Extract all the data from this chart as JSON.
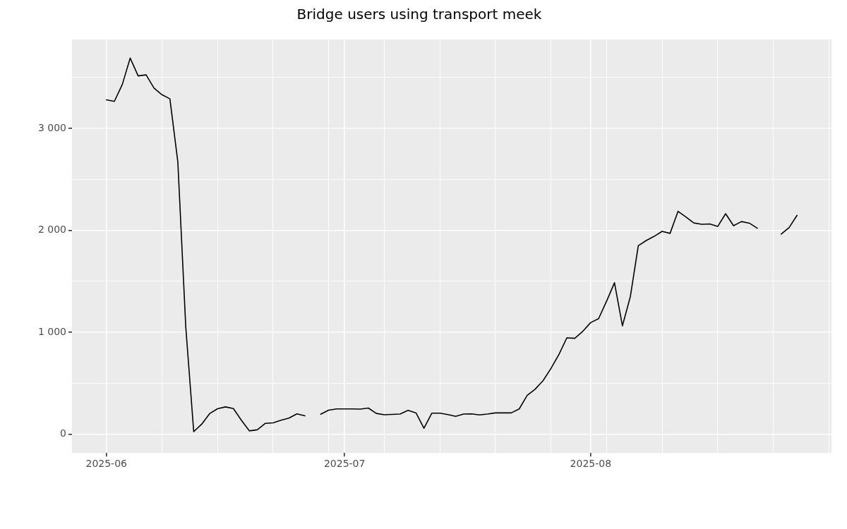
{
  "chart_data": {
    "type": "line",
    "title": "Bridge users using transport meek",
    "x": [
      "2025-06-01",
      "2025-06-02",
      "2025-06-03",
      "2025-06-04",
      "2025-06-05",
      "2025-06-06",
      "2025-06-07",
      "2025-06-08",
      "2025-06-09",
      "2025-06-10",
      "2025-06-11",
      "2025-06-12",
      "2025-06-13",
      "2025-06-14",
      "2025-06-15",
      "2025-06-16",
      "2025-06-17",
      "2025-06-18",
      "2025-06-19",
      "2025-06-20",
      "2025-06-21",
      "2025-06-22",
      "2025-06-23",
      "2025-06-24",
      "2025-06-25",
      "2025-06-26",
      "2025-06-27",
      "2025-06-28",
      "2025-06-29",
      "2025-06-30",
      "2025-07-01",
      "2025-07-02",
      "2025-07-03",
      "2025-07-04",
      "2025-07-05",
      "2025-07-06",
      "2025-07-07",
      "2025-07-08",
      "2025-07-09",
      "2025-07-10",
      "2025-07-11",
      "2025-07-12",
      "2025-07-13",
      "2025-07-14",
      "2025-07-15",
      "2025-07-16",
      "2025-07-17",
      "2025-07-18",
      "2025-07-19",
      "2025-07-20",
      "2025-07-21",
      "2025-07-22",
      "2025-07-23",
      "2025-07-24",
      "2025-07-25",
      "2025-07-26",
      "2025-07-27",
      "2025-07-28",
      "2025-07-29",
      "2025-07-30",
      "2025-07-31",
      "2025-08-01",
      "2025-08-02",
      "2025-08-03",
      "2025-08-04",
      "2025-08-05",
      "2025-08-06",
      "2025-08-07",
      "2025-08-08",
      "2025-08-09",
      "2025-08-10",
      "2025-08-11",
      "2025-08-12",
      "2025-08-13",
      "2025-08-14",
      "2025-08-15",
      "2025-08-16",
      "2025-08-17",
      "2025-08-18",
      "2025-08-19",
      "2025-08-20",
      "2025-08-21",
      "2025-08-22",
      "2025-08-23",
      "2025-08-24",
      "2025-08-25",
      "2025-08-26",
      "2025-08-27"
    ],
    "series": [
      {
        "color": "#000000",
        "values": [
          3280,
          3265,
          3430,
          3690,
          3515,
          3525,
          3395,
          3330,
          3290,
          2670,
          1050,
          25,
          98,
          202,
          250,
          268,
          252,
          137,
          33,
          43,
          106,
          111,
          137,
          158,
          200,
          181,
          null,
          196,
          236,
          248,
          248,
          248,
          246,
          257,
          204,
          191,
          194,
          198,
          234,
          209,
          59,
          207,
          207,
          193,
          175,
          198,
          200,
          189,
          198,
          209,
          209,
          209,
          248,
          380,
          441,
          525,
          645,
          782,
          945,
          941,
          1009,
          1095,
          1134,
          1304,
          1486,
          1063,
          1350,
          1849,
          1900,
          1941,
          1990,
          1970,
          2186,
          2131,
          2072,
          2059,
          2063,
          2038,
          2163,
          2045,
          2086,
          2070,
          2020,
          null,
          null,
          1963,
          2027,
          2147
        ]
      }
    ],
    "xlim": [
      "2025-05-27T16:00",
      "2025-08-31T08:00"
    ],
    "xticks": [
      "2025-06",
      {
        "value": "2025-06-08",
        "label": null
      },
      {
        "value": "2025-06-15",
        "label": null
      },
      {
        "value": "2025-06-22",
        "label": null
      },
      {
        "value": "2025-06-29",
        "label": null
      },
      "2025-07",
      {
        "value": "2025-07-06",
        "label": null
      },
      {
        "value": "2025-07-13",
        "label": null
      },
      {
        "value": "2025-07-20",
        "label": null
      },
      {
        "value": "2025-07-27",
        "label": null
      },
      "2025-08",
      {
        "value": "2025-08-03",
        "label": null
      },
      {
        "value": "2025-08-10",
        "label": null
      },
      {
        "value": "2025-08-17",
        "label": null
      },
      {
        "value": "2025-08-24",
        "label": null
      },
      {
        "value": "2025-08-31",
        "label": null
      }
    ],
    "ylim": [
      -184,
      3872
    ],
    "yticks": [
      {
        "value": 0,
        "label": "0"
      },
      {
        "value": 500,
        "label": null
      },
      {
        "value": 1000,
        "label": "1 000"
      },
      {
        "value": 1500,
        "label": null
      },
      {
        "value": 2000,
        "label": "2 000"
      },
      {
        "value": 2500,
        "label": null
      },
      {
        "value": 3000,
        "label": "3 000"
      },
      {
        "value": 3500,
        "label": null
      }
    ],
    "grid": true,
    "legend": false,
    "marker": "none",
    "line_style": "solid"
  }
}
